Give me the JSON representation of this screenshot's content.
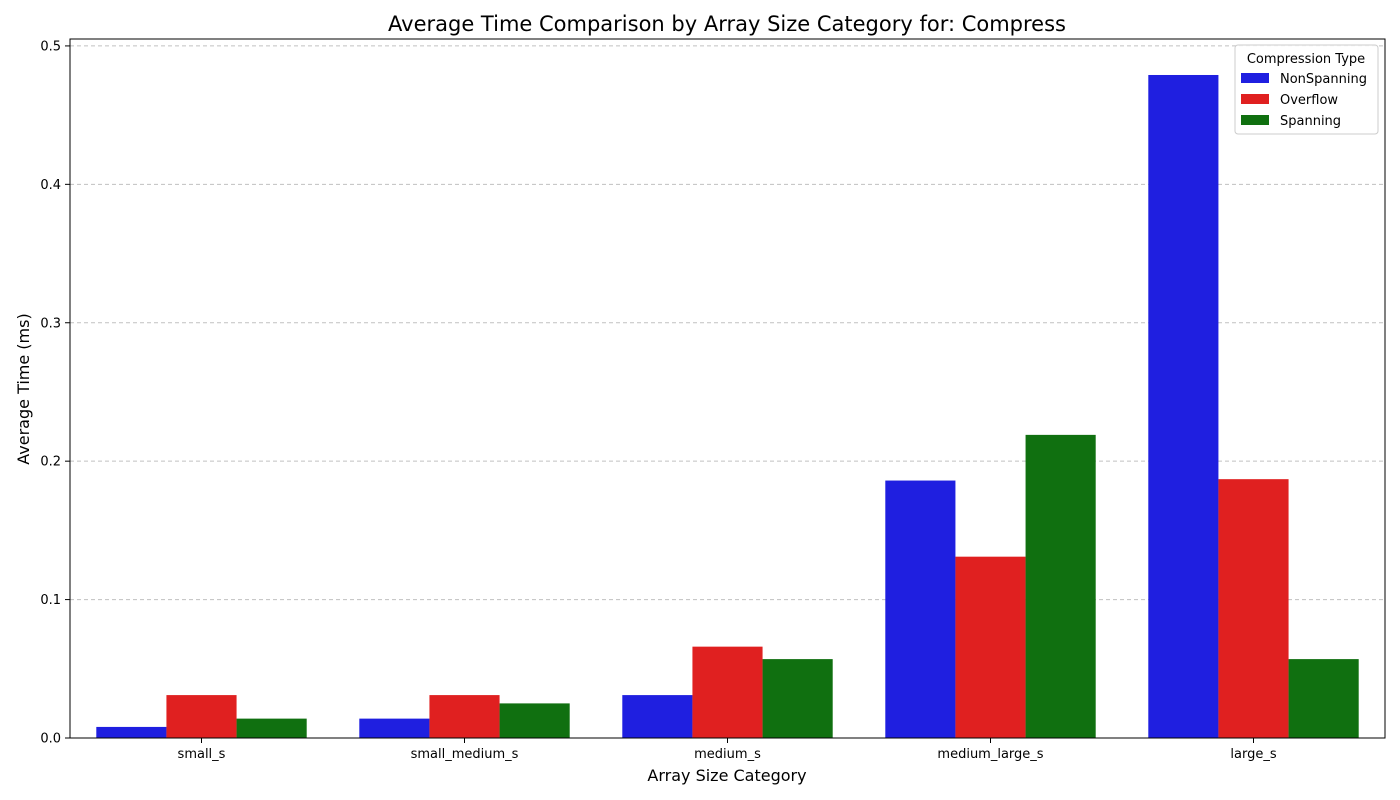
{
  "chart_data": {
    "type": "bar",
    "title": "Average Time Comparison by Array Size Category for: Compress",
    "xlabel": "Array Size Category",
    "ylabel": "Average Time (ms)",
    "categories": [
      "small_s",
      "small_medium_s",
      "medium_s",
      "medium_large_s",
      "large_s"
    ],
    "series": [
      {
        "name": "NonSpanning",
        "color": "#1f1fe0",
        "values": [
          0.008,
          0.014,
          0.031,
          0.186,
          0.479
        ]
      },
      {
        "name": "Overflow",
        "color": "#e02020",
        "values": [
          0.031,
          0.031,
          0.066,
          0.131,
          0.187
        ]
      },
      {
        "name": "Spanning",
        "color": "#107010",
        "values": [
          0.014,
          0.025,
          0.057,
          0.219,
          0.057
        ]
      }
    ],
    "ylim": [
      0,
      0.505
    ],
    "yticks": [
      0.0,
      0.1,
      0.2,
      0.3,
      0.4,
      0.5
    ],
    "ytick_labels": [
      "0.0",
      "0.1",
      "0.2",
      "0.3",
      "0.4",
      "0.5"
    ],
    "grid": "y, dashed",
    "legend": {
      "title": "Compression Type",
      "position": "top-right"
    }
  }
}
